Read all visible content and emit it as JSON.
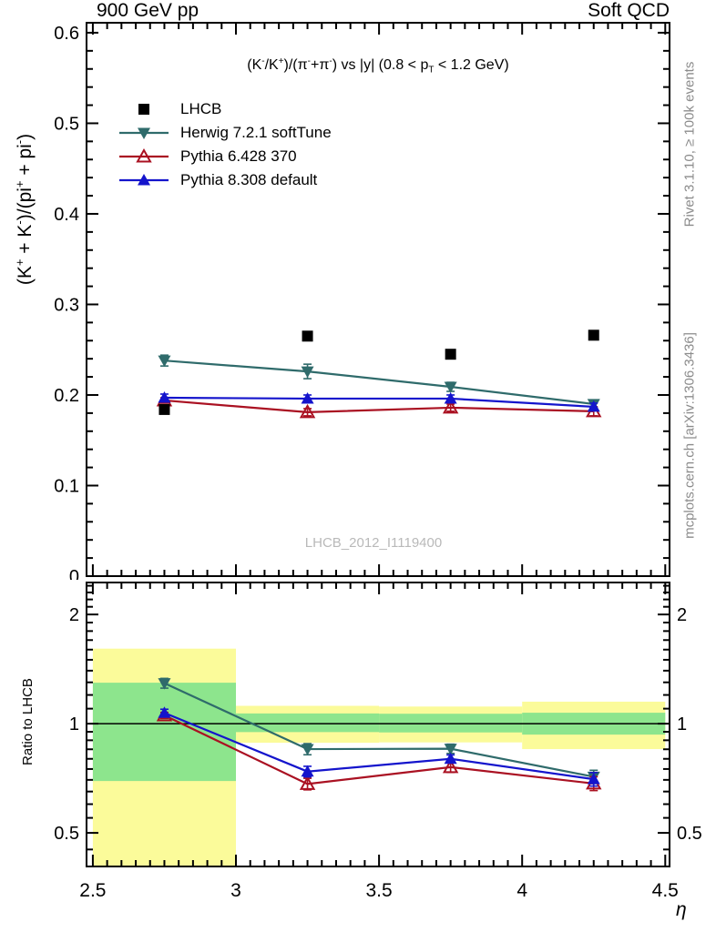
{
  "header": {
    "left": "900 GeV pp",
    "right": "Soft QCD"
  },
  "main_title_segments": [
    {
      "t": "(K"
    },
    {
      "t": "-",
      "sup": true
    },
    {
      "t": "/K"
    },
    {
      "t": "+",
      "sup": true
    },
    {
      "t": ")/(π"
    },
    {
      "t": "-",
      "sup": true
    },
    {
      "t": "+π"
    },
    {
      "t": "-",
      "sup": true
    },
    {
      "t": ") vs |y| (0.8 < p"
    },
    {
      "t": "T",
      "sub": true
    },
    {
      "t": " < 1.2 GeV)"
    }
  ],
  "y_axis_label_segments": [
    {
      "t": "(K"
    },
    {
      "t": "+",
      "sup": true
    },
    {
      "t": " + K"
    },
    {
      "t": "-",
      "sup": true
    },
    {
      "t": ")/(pi"
    },
    {
      "t": "+",
      "sup": true
    },
    {
      "t": " + pi"
    },
    {
      "t": "-",
      "sup": true
    },
    {
      "t": ")"
    }
  ],
  "ratio_axis_label": "Ratio to LHCB",
  "x_axis_label": "η",
  "side_notes": {
    "top": "Rivet 3.1.10, ≥ 100k events",
    "bottom": "mcplots.cern.ch [arXiv:1306.3436]"
  },
  "watermark": "LHCB_2012_I1119400",
  "colors": {
    "lhcb": "#000000",
    "herwig": "#2f6b6b",
    "pythia6": "#aa1122",
    "pythia8": "#1414cc",
    "band_yellow": "#fbfb9a",
    "band_green": "#8de58d",
    "gray_text": "#8c8c8c",
    "watermark_gray": "#b9b9b9"
  },
  "legend": [
    {
      "id": "lhcb",
      "label": "LHCB",
      "marker": "filled-square",
      "has_line": false
    },
    {
      "id": "herwig",
      "label": "Herwig 7.2.1 softTune",
      "marker": "filled-triangle-down",
      "has_line": true
    },
    {
      "id": "pythia6",
      "label": "Pythia 6.428 370",
      "marker": "open-triangle-up",
      "has_line": true
    },
    {
      "id": "pythia8",
      "label": "Pythia 8.308 default",
      "marker": "filled-triangle-up",
      "has_line": true
    }
  ],
  "chart_data": {
    "type": "line",
    "title": "(K-/K+)/(π-+π-) vs |y| (0.8 < pT < 1.2 GeV)",
    "xlabel": "η",
    "x_values": [
      2.75,
      3.25,
      3.75,
      4.25
    ],
    "xlim": [
      2.478,
      4.515
    ],
    "x_major_ticks": [
      2.5,
      3.0,
      3.5,
      4.0,
      4.5
    ],
    "x_tick_labels": [
      "2.5",
      "3",
      "3.5",
      "4",
      "4.5"
    ],
    "x_minor_step": 0.05,
    "main": {
      "ylabel": "(K+ + K-)/(pi+ + pi-)",
      "ylim": [
        0,
        0.611
      ],
      "y_major_ticks": [
        0,
        0.1,
        0.2,
        0.3,
        0.4,
        0.5,
        0.6
      ],
      "y_tick_labels": [
        "0",
        "0.1",
        "0.2",
        "0.3",
        "0.4",
        "0.5",
        "0.6"
      ],
      "y_minor_step": 0.02,
      "grid": false,
      "legend_position": "top-left",
      "series": [
        {
          "id": "herwig",
          "name": "Herwig 7.2.1 softTune",
          "values": [
            0.238,
            0.226,
            0.209,
            0.19
          ],
          "errors": [
            0.006,
            0.008,
            0.005,
            0.004
          ]
        },
        {
          "id": "pythia6",
          "name": "Pythia 6.428 370",
          "values": [
            0.194,
            0.181,
            0.186,
            0.182
          ],
          "errors": [
            0.003,
            0.004,
            0.004,
            0.005
          ]
        },
        {
          "id": "pythia8",
          "name": "Pythia 8.308 default",
          "values": [
            0.197,
            0.196,
            0.196,
            0.187
          ],
          "errors": [
            0.004,
            0.004,
            0.004,
            0.004
          ]
        },
        {
          "id": "lhcb",
          "name": "LHCB",
          "values": [
            0.184,
            0.265,
            0.245,
            0.266
          ],
          "errors": [
            0.003,
            0.003,
            0.003,
            0.003
          ]
        }
      ]
    },
    "ratio": {
      "ylabel": "Ratio to LHCB",
      "scale": "log",
      "ylim": [
        0.404,
        2.45
      ],
      "y_major_ticks": [
        0.5,
        1,
        2
      ],
      "y_tick_labels": [
        "0.5",
        "1",
        "2"
      ],
      "reference_line": 1,
      "bands": [
        {
          "x0": 2.5,
          "x1": 3.0,
          "yellow": [
            0.404,
            1.61
          ],
          "green": [
            0.695,
            1.297
          ]
        },
        {
          "x0": 3.0,
          "x1": 3.5,
          "yellow": [
            0.886,
            1.12
          ],
          "green": [
            0.948,
            1.067
          ]
        },
        {
          "x0": 3.5,
          "x1": 4.0,
          "yellow": [
            0.888,
            1.115
          ],
          "green": [
            0.946,
            1.065
          ]
        },
        {
          "x0": 4.0,
          "x1": 4.5,
          "yellow": [
            0.851,
            1.15
          ],
          "green": [
            0.933,
            1.072
          ]
        }
      ],
      "series": [
        {
          "id": "herwig",
          "name": "Herwig 7.2.1 softTune",
          "values": [
            1.293,
            0.851,
            0.853,
            0.714
          ],
          "errors": [
            0.04,
            0.03,
            0.025,
            0.03
          ]
        },
        {
          "id": "pythia6",
          "name": "Pythia 6.428 370",
          "values": [
            1.054,
            0.682,
            0.759,
            0.684
          ],
          "errors": [
            0.02,
            0.025,
            0.025,
            0.03
          ]
        },
        {
          "id": "pythia8",
          "name": "Pythia 8.308 default",
          "values": [
            1.071,
            0.738,
            0.8,
            0.703
          ],
          "errors": [
            0.025,
            0.025,
            0.02,
            0.03
          ]
        }
      ]
    }
  }
}
